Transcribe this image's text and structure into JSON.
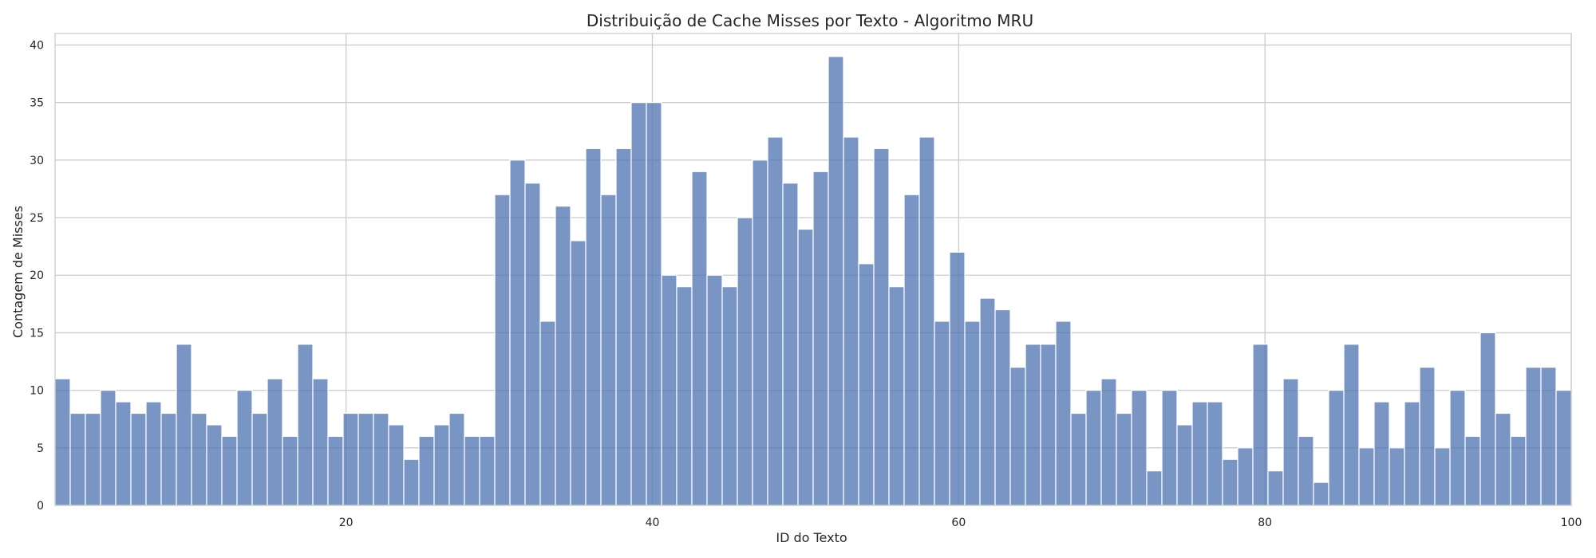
{
  "chart_data": {
    "type": "bar",
    "title": "Distribuição de Cache Misses por Texto - Algoritmo MRU",
    "xlabel": "ID do Texto",
    "ylabel": "Contagem de Misses",
    "xlim": [
      1,
      100
    ],
    "ylim": [
      0,
      41
    ],
    "x_ticks": [
      20,
      40,
      60,
      80,
      100
    ],
    "y_ticks": [
      0,
      5,
      10,
      15,
      20,
      25,
      30,
      35,
      40
    ],
    "grid": true,
    "bar_color": "#4c72b0",
    "values": [
      11,
      8,
      8,
      10,
      9,
      8,
      9,
      8,
      14,
      8,
      7,
      6,
      10,
      8,
      11,
      6,
      14,
      11,
      6,
      8,
      8,
      8,
      7,
      4,
      6,
      7,
      8,
      6,
      6,
      27,
      30,
      28,
      16,
      26,
      23,
      31,
      27,
      31,
      35,
      35,
      20,
      19,
      29,
      20,
      19,
      25,
      30,
      32,
      28,
      24,
      29,
      39,
      32,
      21,
      31,
      19,
      27,
      32,
      16,
      22,
      16,
      18,
      17,
      12,
      14,
      14,
      16,
      8,
      10,
      11,
      8,
      10,
      3,
      10,
      7,
      9,
      9,
      4,
      5,
      14,
      3,
      11,
      6,
      2,
      10,
      14,
      5,
      9,
      5,
      9,
      12,
      5,
      10,
      6,
      15,
      8,
      6,
      12,
      12,
      10
    ]
  }
}
